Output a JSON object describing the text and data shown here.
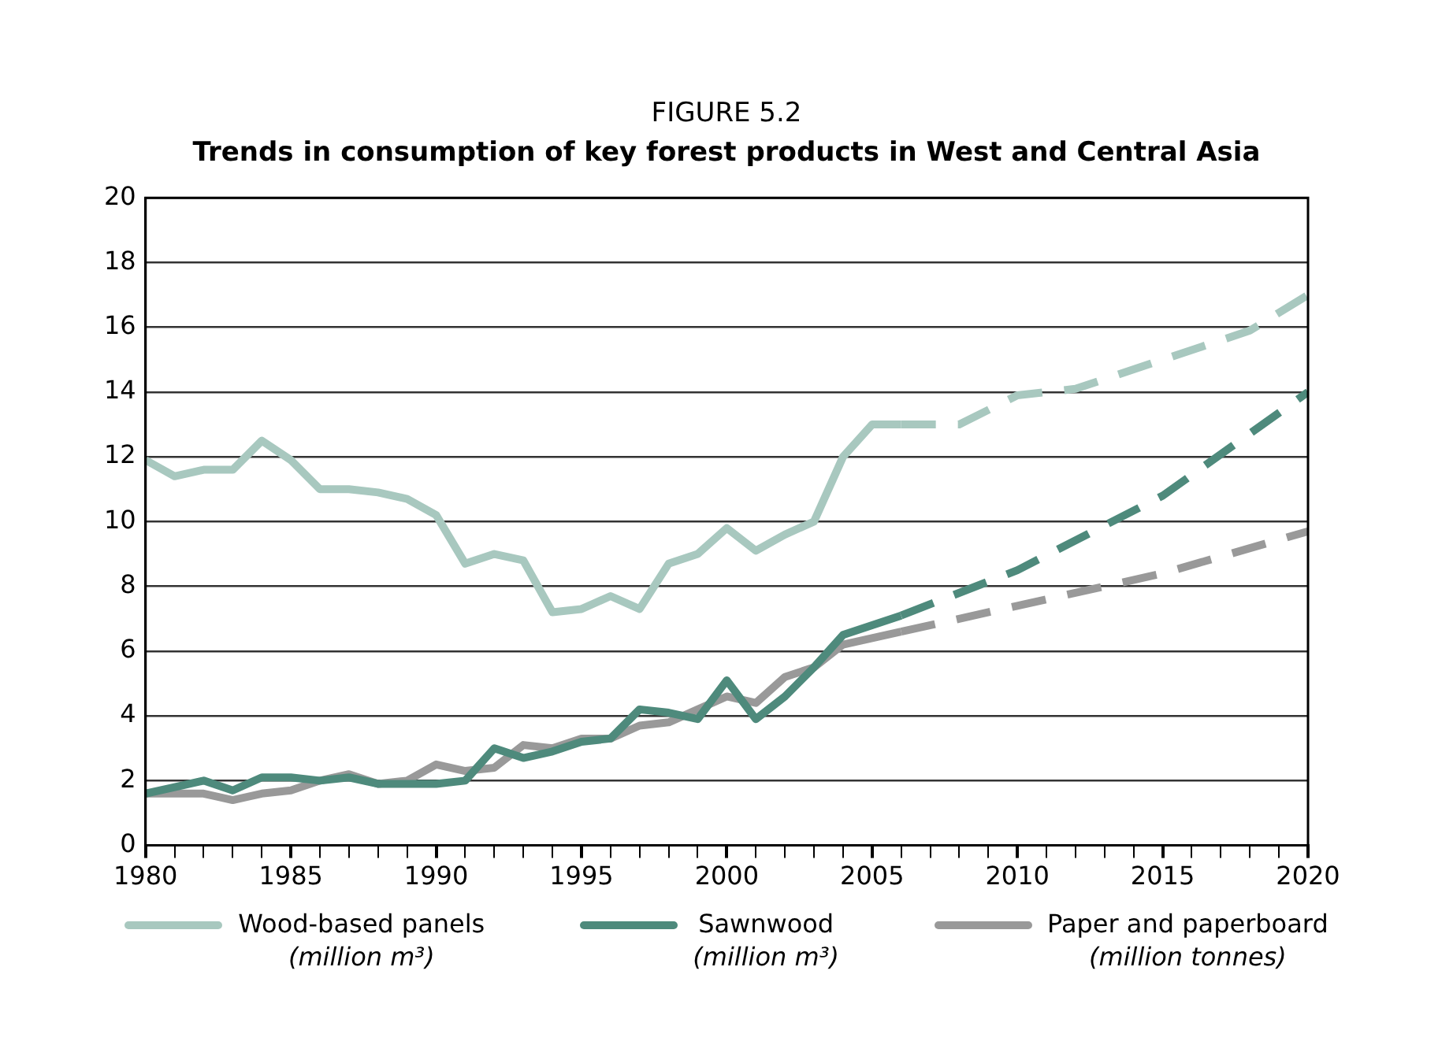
{
  "chart_data": {
    "type": "line",
    "title": "FIGURE 5.2",
    "subtitle": "Trends in consumption of key forest products in West and Central Asia",
    "xlim": [
      1980,
      2020
    ],
    "xticks": [
      1980,
      {
        "value": 1981,
        "label": null
      },
      {
        "value": 1982,
        "label": null
      },
      {
        "value": 1983,
        "label": null
      },
      {
        "value": 1984,
        "label": null
      },
      1985,
      {
        "value": 1986,
        "label": null
      },
      {
        "value": 1987,
        "label": null
      },
      {
        "value": 1988,
        "label": null
      },
      {
        "value": 1989,
        "label": null
      },
      1990,
      {
        "value": 1991,
        "label": null
      },
      {
        "value": 1992,
        "label": null
      },
      {
        "value": 1993,
        "label": null
      },
      {
        "value": 1994,
        "label": null
      },
      1995,
      {
        "value": 1996,
        "label": null
      },
      {
        "value": 1997,
        "label": null
      },
      {
        "value": 1998,
        "label": null
      },
      {
        "value": 1999,
        "label": null
      },
      2000,
      {
        "value": 2001,
        "label": null
      },
      {
        "value": 2002,
        "label": null
      },
      {
        "value": 2003,
        "label": null
      },
      {
        "value": 2004,
        "label": null
      },
      2005,
      {
        "value": 2006,
        "label": null
      },
      {
        "value": 2007,
        "label": null
      },
      {
        "value": 2008,
        "label": null
      },
      {
        "value": 2009,
        "label": null
      },
      2010,
      {
        "value": 2011,
        "label": null
      },
      {
        "value": 2012,
        "label": null
      },
      {
        "value": 2013,
        "label": null
      },
      {
        "value": 2014,
        "label": null
      },
      2015,
      {
        "value": 2016,
        "label": null
      },
      {
        "value": 2017,
        "label": null
      },
      {
        "value": 2018,
        "label": null
      },
      {
        "value": 2019,
        "label": null
      },
      2020
    ],
    "ylim": [
      0,
      20
    ],
    "yticks": [
      0,
      2,
      4,
      6,
      8,
      10,
      12,
      14,
      16,
      18,
      20
    ],
    "grid": "y",
    "legend": "bottom",
    "marker": "none",
    "series": [
      {
        "name": "Wood-based panels (million m³)",
        "color": "#a8c8bf",
        "line_style": "solid",
        "x": [
          1980,
          1981,
          1982,
          1983,
          1984,
          1985,
          1986,
          1987,
          1988,
          1989,
          1990,
          1991,
          1992,
          1993,
          1994,
          1995,
          1996,
          1997,
          1998,
          1999,
          2000,
          2001,
          2002,
          2003,
          2004,
          2005,
          2006
        ],
        "values": [
          11.9,
          11.4,
          11.6,
          11.6,
          12.5,
          11.9,
          11.0,
          11.0,
          10.9,
          10.7,
          10.2,
          8.7,
          9.0,
          8.8,
          7.2,
          7.3,
          7.7,
          7.3,
          8.7,
          9.0,
          9.8,
          9.1,
          9.6,
          10.0,
          12.0,
          13.0,
          13.0
        ]
      },
      {
        "name": "Sawnwood (million m³)",
        "color": "#4e8a7c",
        "line_style": "solid",
        "x": [
          1980,
          1981,
          1982,
          1983,
          1984,
          1985,
          1986,
          1987,
          1988,
          1989,
          1990,
          1991,
          1992,
          1993,
          1994,
          1995,
          1996,
          1997,
          1998,
          1999,
          2000,
          2001,
          2002,
          2003,
          2004,
          2005,
          2006
        ],
        "values": [
          1.6,
          1.8,
          2.0,
          1.7,
          2.1,
          2.1,
          2.0,
          2.1,
          1.9,
          1.9,
          1.9,
          2.0,
          3.0,
          2.7,
          2.9,
          3.2,
          3.3,
          4.2,
          4.1,
          3.9,
          5.1,
          3.9,
          4.6,
          5.5,
          6.5,
          6.8,
          7.1
        ]
      },
      {
        "name": "Paper and paperboard (million tonnes)",
        "color": "#999999",
        "line_style": "solid",
        "x": [
          1980,
          1981,
          1982,
          1983,
          1984,
          1985,
          1986,
          1987,
          1988,
          1989,
          1990,
          1991,
          1992,
          1993,
          1994,
          1995,
          1996,
          1997,
          1998,
          1999,
          2000,
          2001,
          2002,
          2003,
          2004,
          2005,
          2006
        ],
        "values": [
          1.6,
          1.6,
          1.6,
          1.4,
          1.6,
          1.7,
          2.0,
          2.2,
          1.9,
          2.0,
          2.5,
          2.3,
          2.4,
          3.1,
          3.0,
          3.3,
          3.3,
          3.7,
          3.8,
          4.2,
          4.6,
          4.4,
          5.2,
          5.5,
          6.2,
          6.4,
          6.6
        ]
      },
      {
        "color": "#a8c8bf",
        "line_style": "dashed",
        "x": [
          2006,
          2008,
          2010,
          2012,
          2015,
          2018,
          2020
        ],
        "values": [
          13.0,
          13.0,
          13.9,
          14.1,
          15.0,
          15.9,
          17.0
        ]
      },
      {
        "color": "#4e8a7c",
        "line_style": "dashed",
        "x": [
          2006,
          2010,
          2015,
          2020
        ],
        "values": [
          7.1,
          8.5,
          10.8,
          14.0
        ]
      },
      {
        "color": "#999999",
        "line_style": "dashed",
        "x": [
          2006,
          2010,
          2015,
          2020
        ],
        "values": [
          6.6,
          7.4,
          8.4,
          9.7
        ]
      }
    ]
  }
}
